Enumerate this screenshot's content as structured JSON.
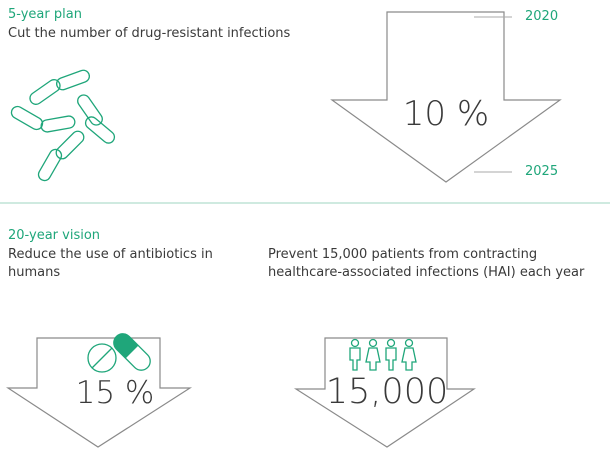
{
  "five_year": {
    "label": "5-year plan",
    "text": "Cut the number of drug-resistant infections",
    "value": "10 %",
    "start": "2020",
    "end": "2025"
  },
  "twenty_year": {
    "label": "20-year vision",
    "items": [
      {
        "text": "Reduce the use of antibiotics in humans",
        "value": "15 %"
      },
      {
        "text": "Prevent 15,000 patients from contracting healthcare-associated infections (HAI) each year",
        "value": "15,000"
      }
    ]
  }
}
